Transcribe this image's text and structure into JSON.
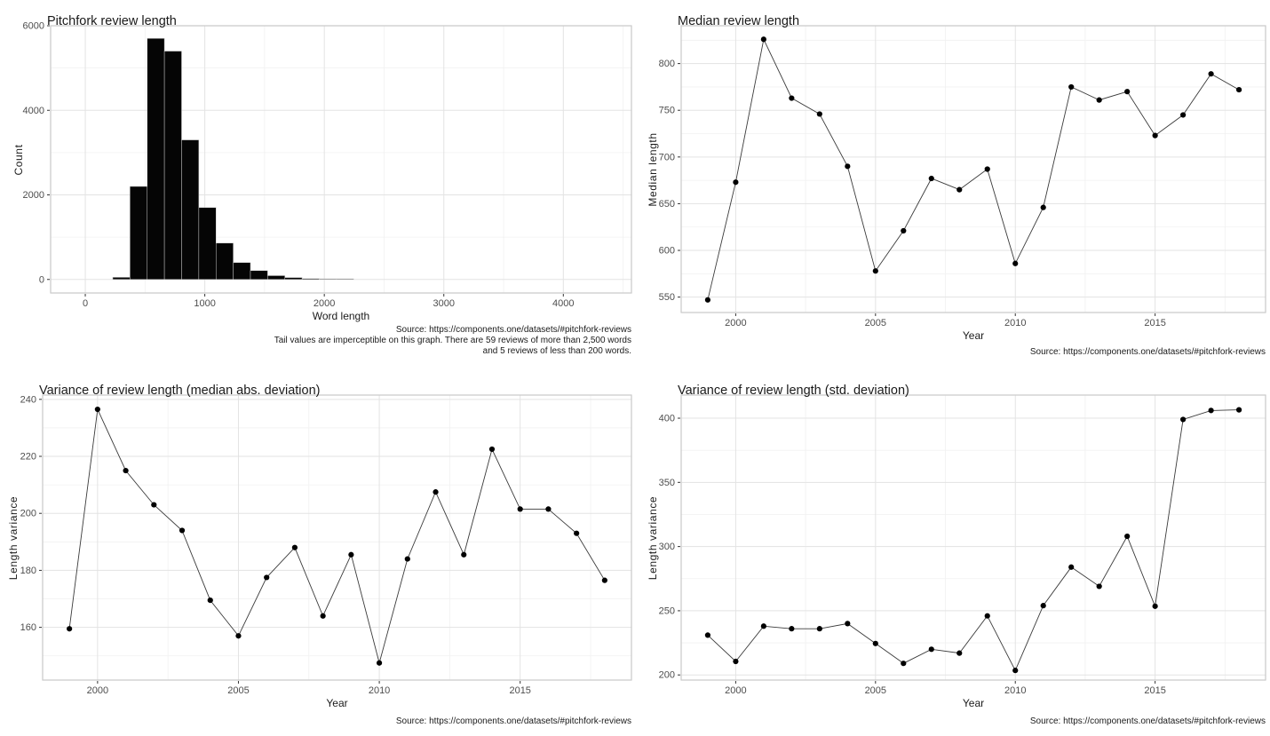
{
  "style": {
    "background": "#ffffff",
    "major_grid": "#e3e3e3",
    "minor_grid": "#f1f1f1",
    "panel_border": "#c9c9c9",
    "tick_mark_color": "#333333",
    "tick_label_color": "#4d4d4d",
    "text_color": "#1a1a1a",
    "line_color": "#3a3a3a",
    "point_color": "#000000",
    "bar_fill": "#050505",
    "bar_stroke": "#c8c8c8"
  },
  "chart_data": [
    {
      "type": "bar",
      "id": "pitchfork-review-length-histogram",
      "title": "Pitchfork review length",
      "xlabel": "Word length",
      "ylabel": "Count",
      "captions": [
        "Source: https://components.one/datasets/#pitchfork-reviews",
        "Tail values are imperceptible on this graph. There are 59 reviews of more than 2,500 words",
        "and 5 reviews of less than 200 words."
      ],
      "bins": {
        "start": 230,
        "width": 144,
        "counts": [
          50,
          2200,
          5700,
          5400,
          3300,
          1700,
          860,
          400,
          210,
          90,
          45,
          20,
          15,
          15
        ]
      },
      "xlim": [
        -290,
        4570
      ],
      "ylim": [
        -320,
        6000
      ],
      "x_ticks": [
        0,
        1000,
        2000,
        3000,
        4000
      ],
      "x_minor": [
        500,
        1500,
        2500,
        3500,
        4500
      ],
      "y_ticks": [
        0,
        2000,
        4000,
        6000
      ],
      "y_minor": [
        1000,
        3000,
        5000
      ],
      "grid": true,
      "legend": "none"
    },
    {
      "type": "line",
      "id": "median-review-length",
      "title": "Median review length",
      "xlabel": "Year",
      "ylabel": "Median length",
      "captions": [
        "Source: https://components.one/datasets/#pitchfork-reviews"
      ],
      "x": [
        1999,
        2000,
        2001,
        2002,
        2003,
        2004,
        2005,
        2006,
        2007,
        2008,
        2009,
        2010,
        2011,
        2012,
        2013,
        2014,
        2015,
        2016,
        2017,
        2018
      ],
      "y": [
        547,
        673,
        826,
        763,
        746,
        690,
        578,
        621,
        677,
        665,
        687,
        586,
        646,
        775,
        761,
        770,
        723,
        745,
        789,
        772
      ],
      "xlim": [
        1998.05,
        2018.95
      ],
      "ylim": [
        533.5,
        840.5
      ],
      "x_ticks": [
        2000,
        2005,
        2010,
        2015
      ],
      "x_minor": [
        2002.5,
        2007.5,
        2012.5,
        2017.5
      ],
      "y_ticks": [
        550,
        600,
        650,
        700,
        750,
        800
      ],
      "y_minor": [
        575,
        625,
        675,
        725,
        775,
        825
      ],
      "grid": true,
      "legend": "none"
    },
    {
      "type": "line",
      "id": "variance-median-abs-deviation",
      "title": "Variance of review length (median abs. deviation)",
      "xlabel": "Year",
      "ylabel": "Length variance",
      "captions": [
        "Source: https://components.one/datasets/#pitchfork-reviews"
      ],
      "x": [
        1999,
        2000,
        2001,
        2002,
        2003,
        2004,
        2005,
        2006,
        2007,
        2008,
        2009,
        2010,
        2011,
        2012,
        2013,
        2014,
        2015,
        2016,
        2017,
        2018
      ],
      "y": [
        159.5,
        236.5,
        215,
        203,
        194,
        169.5,
        157,
        177.5,
        188,
        164,
        185.5,
        147.5,
        184,
        207.5,
        185.5,
        222.5,
        201.5,
        201.5,
        193,
        176.5
      ],
      "xlim": [
        1998.05,
        2018.95
      ],
      "ylim": [
        141.5,
        241.5
      ],
      "x_ticks": [
        2000,
        2005,
        2010,
        2015
      ],
      "x_minor": [
        2002.5,
        2007.5,
        2012.5,
        2017.5
      ],
      "y_ticks": [
        160,
        180,
        200,
        220,
        240
      ],
      "y_minor": [
        150,
        170,
        190,
        210,
        230
      ],
      "grid": true,
      "legend": "none"
    },
    {
      "type": "line",
      "id": "variance-std-deviation",
      "title": "Variance of review length (std. deviation)",
      "xlabel": "Year",
      "ylabel": "Length variance",
      "captions": [
        "Source: https://components.one/datasets/#pitchfork-reviews"
      ],
      "x": [
        1999,
        2000,
        2001,
        2002,
        2003,
        2004,
        2005,
        2006,
        2007,
        2008,
        2009,
        2010,
        2011,
        2012,
        2013,
        2014,
        2015,
        2016,
        2017,
        2018
      ],
      "y": [
        231,
        210.5,
        238,
        236,
        236,
        240,
        224.5,
        209,
        220,
        217,
        246,
        203.5,
        254,
        284,
        269,
        308,
        253.5,
        399,
        406,
        406.5
      ],
      "xlim": [
        1998.05,
        2018.95
      ],
      "ylim": [
        196,
        418
      ],
      "x_ticks": [
        2000,
        2005,
        2010,
        2015
      ],
      "x_minor": [
        2002.5,
        2007.5,
        2012.5,
        2017.5
      ],
      "y_ticks": [
        200,
        250,
        300,
        350,
        400
      ],
      "y_minor": [
        225,
        275,
        325,
        375
      ],
      "grid": true,
      "legend": "none"
    }
  ]
}
